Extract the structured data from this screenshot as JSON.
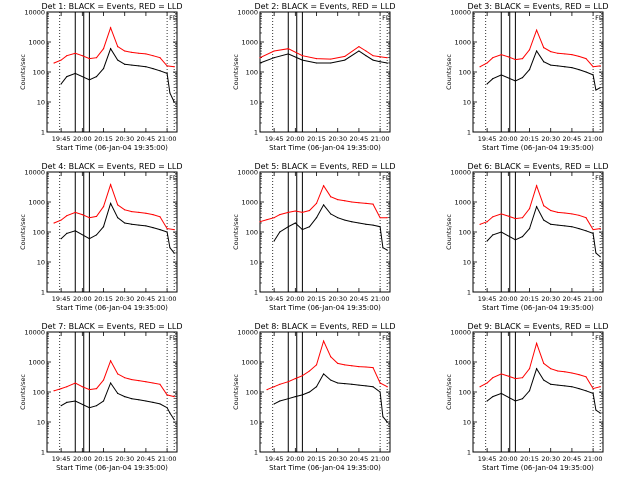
{
  "chart_data": [
    {
      "type": "line",
      "title": "Det 1: BLACK = Events, RED = LLD",
      "xlabel": "Start Time (06-Jan-04 19:35:00)",
      "ylabel": "Counts/sec",
      "x_ticks": [
        "19:45",
        "20:00",
        "20:15",
        "20:30",
        "20:45",
        "21:00"
      ],
      "y_ticks": [
        "1",
        "10",
        "100",
        "1000",
        "10000"
      ],
      "yscale": "log",
      "ylim": [
        1,
        10000
      ],
      "xlim_minutes": [
        0,
        92
      ],
      "series": [
        {
          "color": "#000000",
          "x": [
            10,
            14,
            20,
            30,
            35,
            40,
            45,
            50,
            55,
            60,
            65,
            70,
            75,
            80,
            85,
            87,
            90
          ],
          "values": [
            40,
            70,
            90,
            55,
            70,
            130,
            600,
            250,
            180,
            170,
            160,
            150,
            130,
            110,
            90,
            20,
            10
          ]
        },
        {
          "color": "#ff0000",
          "x": [
            5,
            10,
            14,
            20,
            25,
            30,
            35,
            40,
            45,
            50,
            55,
            60,
            65,
            70,
            75,
            80,
            85,
            90
          ],
          "values": [
            200,
            250,
            350,
            420,
            350,
            280,
            300,
            600,
            3000,
            700,
            500,
            450,
            420,
            400,
            350,
            300,
            160,
            150
          ]
        }
      ],
      "vlines_solid": [
        20,
        26,
        30
      ],
      "vlines_dotted": [
        9,
        85,
        90
      ],
      "top_marker": "FL"
    },
    {
      "type": "line",
      "title": "Det 2: BLACK = Events, RED = LLD",
      "xlabel": "Start Time (06-Jan-04 19:35:00)",
      "ylabel": "Counts/sec",
      "x_ticks": [
        "19:45",
        "20:00",
        "20:15",
        "20:30",
        "20:45",
        "21:00"
      ],
      "y_ticks": [
        "1",
        "10",
        "100",
        "1000",
        "10000"
      ],
      "yscale": "log",
      "ylim": [
        1,
        10000
      ],
      "xlim_minutes": [
        0,
        92
      ],
      "series": [
        {
          "color": "#000000",
          "x": [
            0,
            10,
            20,
            30,
            40,
            50,
            60,
            70,
            75,
            80,
            85,
            90
          ],
          "values": [
            200,
            300,
            400,
            250,
            200,
            200,
            250,
            500,
            350,
            250,
            220,
            200
          ]
        },
        {
          "color": "#ff0000",
          "x": [
            0,
            10,
            20,
            30,
            40,
            50,
            60,
            70,
            75,
            80,
            85,
            90
          ],
          "values": [
            300,
            500,
            600,
            350,
            280,
            270,
            330,
            700,
            500,
            350,
            320,
            300
          ]
        }
      ],
      "vlines_solid": [
        20,
        26,
        30
      ],
      "vlines_dotted": [
        9,
        85,
        90
      ],
      "top_marker": "FL"
    },
    {
      "type": "line",
      "title": "Det 3: BLACK = Events, RED = LLD",
      "xlabel": "Start Time (06-Jan-04 19:35:00)",
      "ylabel": "Counts/sec",
      "x_ticks": [
        "19:45",
        "20:00",
        "20:15",
        "20:30",
        "20:45",
        "21:00"
      ],
      "y_ticks": [
        "1",
        "10",
        "100",
        "1000",
        "10000"
      ],
      "yscale": "log",
      "ylim": [
        1,
        10000
      ],
      "xlim_minutes": [
        0,
        92
      ],
      "series": [
        {
          "color": "#000000",
          "x": [
            10,
            14,
            20,
            30,
            35,
            40,
            45,
            50,
            55,
            60,
            65,
            70,
            75,
            80,
            85,
            87,
            90
          ],
          "values": [
            40,
            60,
            80,
            50,
            65,
            120,
            500,
            220,
            170,
            160,
            150,
            140,
            120,
            100,
            80,
            25,
            30
          ]
        },
        {
          "color": "#ff0000",
          "x": [
            5,
            10,
            14,
            20,
            25,
            30,
            35,
            40,
            45,
            50,
            55,
            60,
            65,
            70,
            75,
            80,
            85,
            90
          ],
          "values": [
            150,
            200,
            300,
            380,
            320,
            260,
            280,
            550,
            2500,
            650,
            480,
            420,
            400,
            380,
            330,
            280,
            150,
            160
          ]
        }
      ],
      "vlines_solid": [
        20,
        26,
        30
      ],
      "vlines_dotted": [
        9,
        85,
        90
      ],
      "top_marker": "FL"
    },
    {
      "type": "line",
      "title": "Det 4: BLACK = Events, RED = LLD",
      "xlabel": "Start Time (06-Jan-04 19:35:00)",
      "ylabel": "Counts/sec",
      "x_ticks": [
        "19:45",
        "20:00",
        "20:15",
        "20:30",
        "20:45",
        "21:00"
      ],
      "y_ticks": [
        "1",
        "10",
        "100",
        "1000",
        "10000"
      ],
      "yscale": "log",
      "ylim": [
        1,
        10000
      ],
      "xlim_minutes": [
        0,
        92
      ],
      "series": [
        {
          "color": "#000000",
          "x": [
            10,
            14,
            20,
            30,
            35,
            40,
            45,
            50,
            55,
            60,
            65,
            70,
            75,
            80,
            85,
            87,
            90
          ],
          "values": [
            60,
            90,
            110,
            60,
            80,
            150,
            900,
            300,
            200,
            180,
            170,
            160,
            140,
            120,
            100,
            30,
            20
          ]
        },
        {
          "color": "#ff0000",
          "x": [
            5,
            10,
            14,
            20,
            25,
            30,
            35,
            40,
            45,
            50,
            55,
            60,
            65,
            70,
            75,
            80,
            85,
            90
          ],
          "values": [
            200,
            250,
            350,
            450,
            380,
            300,
            330,
            700,
            3800,
            800,
            550,
            480,
            450,
            420,
            380,
            320,
            130,
            120
          ]
        }
      ],
      "vlines_solid": [
        20,
        26,
        30
      ],
      "vlines_dotted": [
        9,
        85,
        90
      ],
      "top_marker": "FL"
    },
    {
      "type": "line",
      "title": "Det 5: BLACK = Events, RED = LLD",
      "xlabel": "Start Time (06-Jan-04 19:35:00)",
      "ylabel": "Counts/sec",
      "x_ticks": [
        "19:45",
        "20:00",
        "20:15",
        "20:30",
        "20:45",
        "21:00"
      ],
      "y_ticks": [
        "1",
        "10",
        "100",
        "1000",
        "10000"
      ],
      "yscale": "log",
      "ylim": [
        1,
        10000
      ],
      "xlim_minutes": [
        0,
        92
      ],
      "series": [
        {
          "color": "#000000",
          "x": [
            10,
            14,
            20,
            25,
            30,
            35,
            40,
            45,
            50,
            55,
            60,
            65,
            70,
            75,
            80,
            85,
            87,
            90
          ],
          "values": [
            50,
            100,
            150,
            200,
            120,
            150,
            300,
            800,
            400,
            300,
            250,
            220,
            200,
            180,
            170,
            150,
            30,
            25
          ]
        },
        {
          "color": "#ff0000",
          "x": [
            0,
            5,
            10,
            14,
            20,
            25,
            30,
            35,
            40,
            45,
            50,
            55,
            60,
            65,
            70,
            75,
            80,
            85,
            90
          ],
          "values": [
            220,
            260,
            300,
            380,
            450,
            500,
            450,
            520,
            900,
            3500,
            1500,
            1200,
            1100,
            1000,
            950,
            900,
            850,
            300,
            300
          ]
        }
      ],
      "vlines_solid": [
        20,
        26,
        30
      ],
      "vlines_dotted": [
        9,
        85,
        90
      ],
      "top_marker": "FL"
    },
    {
      "type": "line",
      "title": "Det 6: BLACK = Events, RED = LLD",
      "xlabel": "Start Time (06-Jan-04 19:35:00)",
      "ylabel": "Counts/sec",
      "x_ticks": [
        "19:45",
        "20:00",
        "20:15",
        "20:30",
        "20:45",
        "21:00"
      ],
      "y_ticks": [
        "1",
        "10",
        "100",
        "1000",
        "10000"
      ],
      "yscale": "log",
      "ylim": [
        1,
        10000
      ],
      "xlim_minutes": [
        0,
        92
      ],
      "series": [
        {
          "color": "#000000",
          "x": [
            10,
            14,
            20,
            30,
            35,
            40,
            45,
            50,
            55,
            60,
            65,
            70,
            75,
            80,
            85,
            87,
            90
          ],
          "values": [
            50,
            80,
            100,
            55,
            70,
            130,
            700,
            250,
            180,
            170,
            160,
            150,
            130,
            110,
            90,
            20,
            15
          ]
        },
        {
          "color": "#ff0000",
          "x": [
            5,
            10,
            14,
            20,
            25,
            30,
            35,
            40,
            45,
            50,
            55,
            60,
            65,
            70,
            75,
            80,
            85,
            90
          ],
          "values": [
            180,
            220,
            320,
            400,
            340,
            280,
            300,
            600,
            3500,
            750,
            520,
            450,
            430,
            400,
            360,
            300,
            120,
            130
          ]
        }
      ],
      "vlines_solid": [
        20,
        26,
        30
      ],
      "vlines_dotted": [
        9,
        85,
        90
      ],
      "top_marker": "FL"
    },
    {
      "type": "line",
      "title": "Det 7: BLACK = Events, RED = LLD",
      "xlabel": "Start Time (06-Jan-04 19:35:00)",
      "ylabel": "Counts/sec",
      "x_ticks": [
        "19:45",
        "20:00",
        "20:15",
        "20:30",
        "20:45",
        "21:00"
      ],
      "y_ticks": [
        "1",
        "10",
        "100",
        "1000",
        "10000"
      ],
      "yscale": "log",
      "ylim": [
        1,
        10000
      ],
      "xlim_minutes": [
        0,
        92
      ],
      "series": [
        {
          "color": "#000000",
          "x": [
            10,
            14,
            20,
            30,
            35,
            40,
            45,
            50,
            55,
            60,
            65,
            70,
            75,
            80,
            85,
            87,
            90
          ],
          "values": [
            35,
            45,
            50,
            30,
            35,
            50,
            200,
            90,
            70,
            60,
            55,
            50,
            45,
            40,
            30,
            20,
            12
          ]
        },
        {
          "color": "#ff0000",
          "x": [
            5,
            10,
            14,
            20,
            25,
            30,
            35,
            40,
            45,
            50,
            55,
            60,
            65,
            70,
            75,
            80,
            85,
            90
          ],
          "values": [
            110,
            130,
            150,
            200,
            150,
            120,
            130,
            250,
            1100,
            400,
            300,
            260,
            240,
            220,
            200,
            180,
            80,
            70
          ]
        }
      ],
      "vlines_solid": [
        20,
        26,
        30
      ],
      "vlines_dotted": [
        9,
        85,
        90
      ],
      "top_marker": "FL"
    },
    {
      "type": "line",
      "title": "Det 8: BLACK = Events, RED = LLD",
      "xlabel": "Start Time (06-Jan-04 19:35:00)",
      "ylabel": "Counts/sec",
      "x_ticks": [
        "19:45",
        "20:00",
        "20:15",
        "20:30",
        "20:45",
        "21:00"
      ],
      "y_ticks": [
        "1",
        "10",
        "100",
        "1000",
        "10000"
      ],
      "yscale": "log",
      "ylim": [
        1,
        10000
      ],
      "xlim_minutes": [
        0,
        92
      ],
      "series": [
        {
          "color": "#000000",
          "x": [
            10,
            14,
            20,
            25,
            30,
            35,
            40,
            45,
            50,
            55,
            60,
            65,
            70,
            75,
            80,
            85,
            87,
            90
          ],
          "values": [
            40,
            50,
            60,
            70,
            80,
            100,
            150,
            400,
            250,
            200,
            190,
            180,
            170,
            160,
            150,
            100,
            15,
            10
          ]
        },
        {
          "color": "#ff0000",
          "x": [
            5,
            10,
            14,
            20,
            25,
            30,
            35,
            40,
            45,
            50,
            55,
            60,
            65,
            70,
            75,
            80,
            85,
            90
          ],
          "values": [
            120,
            150,
            180,
            220,
            280,
            350,
            500,
            800,
            5000,
            1500,
            900,
            800,
            750,
            700,
            680,
            650,
            200,
            150
          ]
        }
      ],
      "vlines_solid": [
        20,
        26,
        30
      ],
      "vlines_dotted": [
        9,
        85,
        90
      ],
      "top_marker": "FL"
    },
    {
      "type": "line",
      "title": "Det 9: BLACK = Events, RED = LLD",
      "xlabel": "Start Time (06-Jan-04 19:35:00)",
      "ylabel": "Counts/sec",
      "x_ticks": [
        "19:45",
        "20:00",
        "20:15",
        "20:30",
        "20:45",
        "21:00"
      ],
      "y_ticks": [
        "1",
        "10",
        "100",
        "1000",
        "10000"
      ],
      "yscale": "log",
      "ylim": [
        1,
        10000
      ],
      "xlim_minutes": [
        0,
        92
      ],
      "series": [
        {
          "color": "#000000",
          "x": [
            10,
            14,
            20,
            30,
            35,
            40,
            45,
            50,
            55,
            60,
            65,
            70,
            75,
            80,
            85,
            87,
            90
          ],
          "values": [
            50,
            70,
            90,
            50,
            60,
            110,
            600,
            250,
            180,
            170,
            160,
            150,
            130,
            110,
            90,
            25,
            20
          ]
        },
        {
          "color": "#ff0000",
          "x": [
            5,
            10,
            14,
            20,
            25,
            30,
            35,
            40,
            45,
            50,
            55,
            60,
            65,
            70,
            75,
            80,
            85,
            90
          ],
          "values": [
            150,
            200,
            300,
            400,
            340,
            280,
            300,
            600,
            4200,
            900,
            600,
            500,
            470,
            430,
            380,
            320,
            130,
            150
          ]
        }
      ],
      "vlines_solid": [
        20,
        26,
        30
      ],
      "vlines_dotted": [
        9,
        85,
        90
      ],
      "top_marker": "FL"
    }
  ]
}
